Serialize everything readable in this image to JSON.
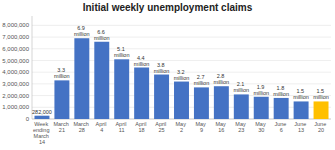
{
  "chart_data": {
    "type": "bar",
    "title": "Initial weekly unemployment claims",
    "categories": [
      "Week ending\nMarch 14",
      "March 21",
      "March 28",
      "April 4",
      "April 11",
      "April 18",
      "April 25",
      "May 2",
      "May 9",
      "May 16",
      "May 23",
      "May 30",
      "June 6",
      "June 13",
      "June 20"
    ],
    "values": [
      282000,
      3300000,
      6900000,
      6600000,
      5100000,
      4400000,
      3800000,
      3200000,
      2700000,
      2800000,
      2100000,
      1900000,
      1800000,
      1500000,
      1500000
    ],
    "value_labels": [
      "282,000",
      "3.3 million",
      "6.9 million",
      "6.6 million",
      "5.1 million",
      "4.4 million",
      "3.8 million",
      "3.2 million",
      "2.7 million",
      "2.8 million",
      "2.1 million",
      "1.9 million",
      "1.8 million",
      "1.5 million",
      "1.5 million"
    ],
    "colors": [
      "#4472C4",
      "#4472C4",
      "#4472C4",
      "#4472C4",
      "#4472C4",
      "#4472C4",
      "#4472C4",
      "#4472C4",
      "#4472C4",
      "#4472C4",
      "#4472C4",
      "#4472C4",
      "#4472C4",
      "#4472C4",
      "#FFC000"
    ],
    "ylim": [
      0,
      8800000
    ],
    "yticks": [
      0,
      {
        "value": 1000000,
        "label": "1,000,000"
      },
      {
        "value": 2000000,
        "label": "2,000,000"
      },
      {
        "value": 3000000,
        "label": "3,000,000"
      },
      {
        "value": 4000000,
        "label": "4,000,000"
      },
      {
        "value": 5000000,
        "label": "5,000,000"
      },
      {
        "value": 6000000,
        "label": "6,000,000"
      },
      {
        "value": 7000000,
        "label": "7,000,000"
      },
      {
        "value": 8000000,
        "label": "8,000,000"
      }
    ],
    "grid": true,
    "data_labels": true
  }
}
